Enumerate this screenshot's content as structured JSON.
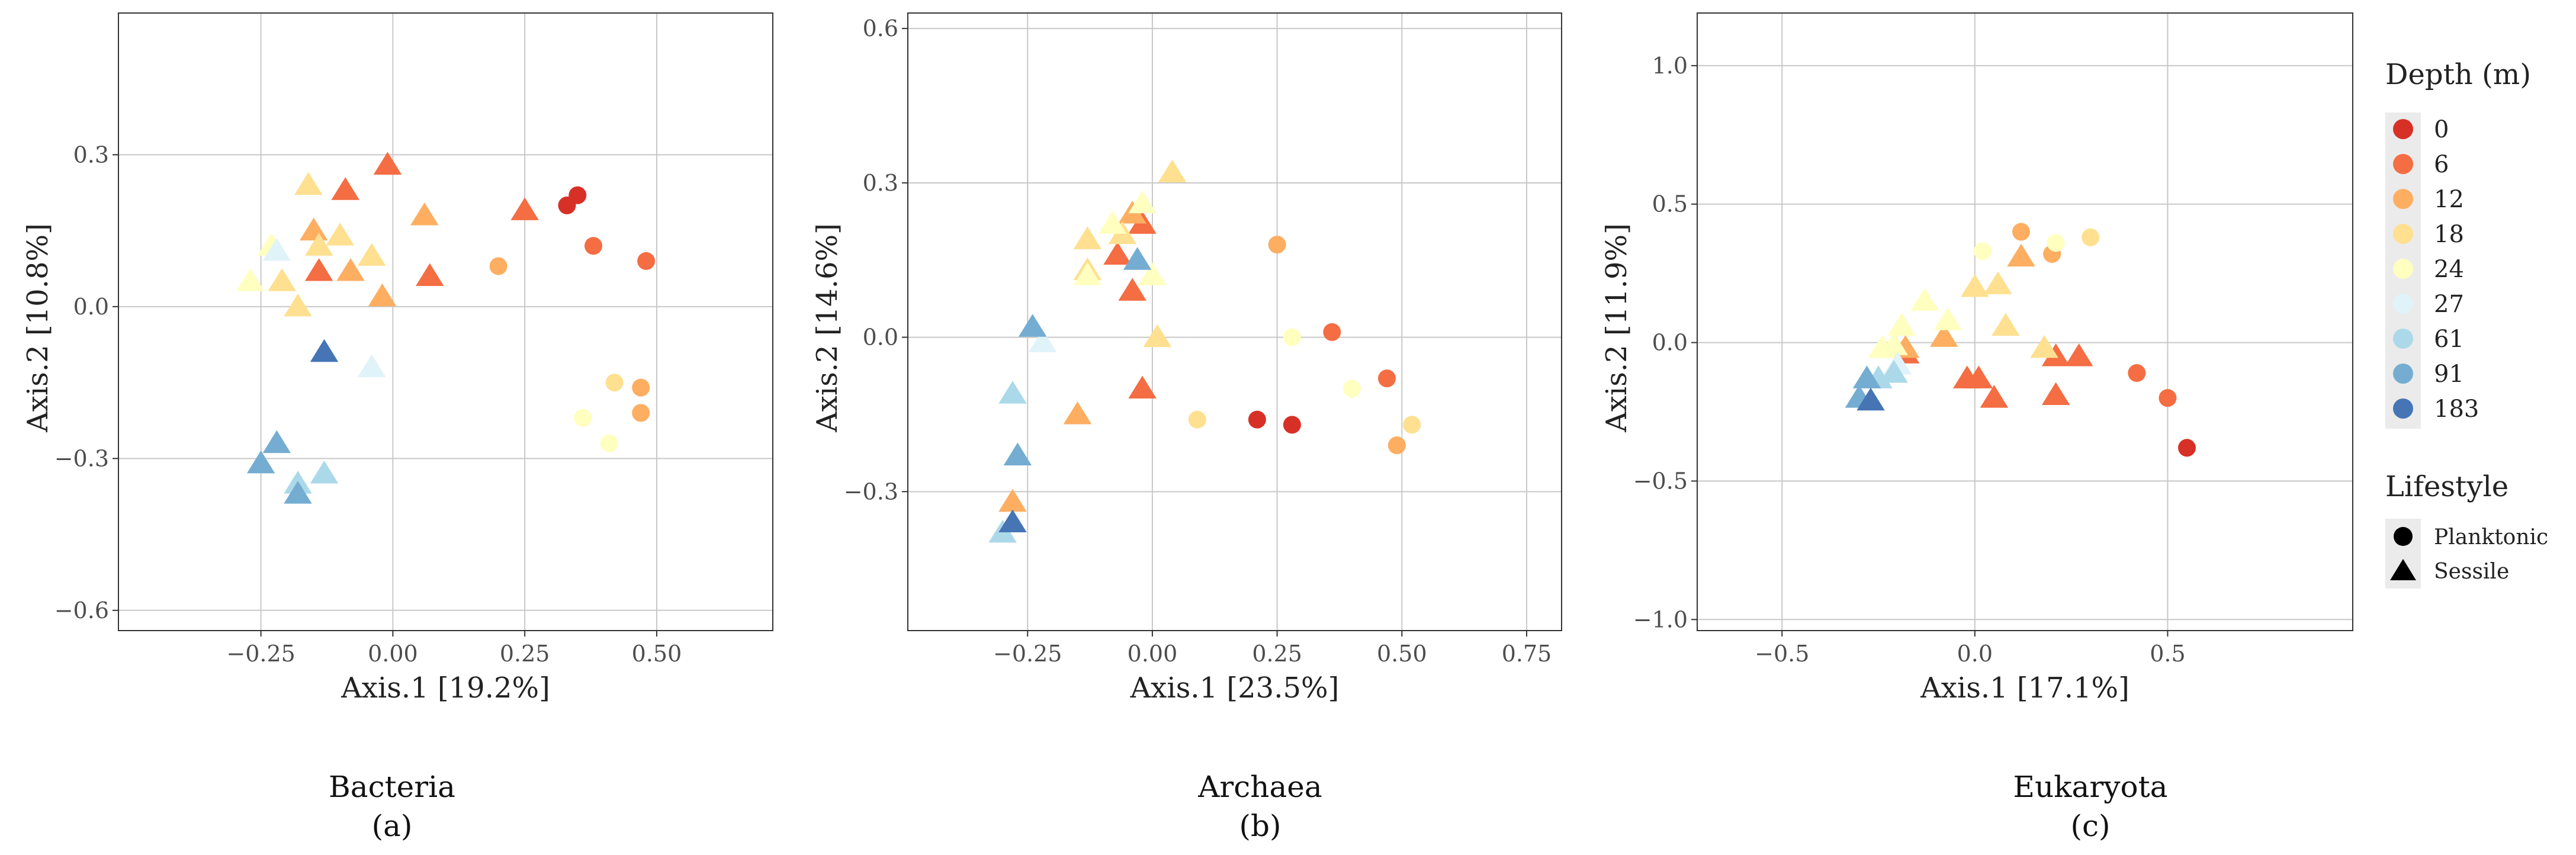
{
  "colors": {
    "0": "#d73027",
    "6": "#f46d43",
    "12": "#fdae61",
    "18": "#fee090",
    "24": "#ffffbf",
    "27": "#e0f3f8",
    "61": "#abd9e9",
    "91": "#74add1",
    "183": "#4575b4",
    "grid": "#c8c8c8",
    "panel_border": "#333333"
  },
  "legend": {
    "depth_title": "Depth (m)",
    "depth_levels": [
      "0",
      "6",
      "12",
      "18",
      "24",
      "27",
      "61",
      "91",
      "183"
    ],
    "lifestyle_title": "Lifestyle",
    "lifestyles": [
      "Planktonic",
      "Sessile"
    ]
  },
  "chart_data": [
    {
      "type": "scatter",
      "title": "Bacteria",
      "caption": "(a)",
      "xlabel": "Axis.1  [19.2%]",
      "ylabel": "Axis.2  [10.8%]",
      "xlim": [
        -0.52,
        0.72
      ],
      "ylim": [
        -0.64,
        0.58
      ],
      "xticks": [
        -0.25,
        0.0,
        0.25,
        0.5
      ],
      "xtick_labels": [
        "−0.25",
        "0.00",
        "0.25",
        "0.50"
      ],
      "yticks": [
        -0.6,
        -0.3,
        0.0,
        0.3
      ],
      "ytick_labels": [
        "−0.6",
        "−0.3",
        "0.0",
        "0.3"
      ],
      "points": [
        {
          "x": 0.33,
          "y": 0.2,
          "depth": "0",
          "lifestyle": "Planktonic"
        },
        {
          "x": 0.35,
          "y": 0.22,
          "depth": "0",
          "lifestyle": "Planktonic"
        },
        {
          "x": 0.38,
          "y": 0.12,
          "depth": "6",
          "lifestyle": "Planktonic"
        },
        {
          "x": 0.48,
          "y": 0.09,
          "depth": "6",
          "lifestyle": "Planktonic"
        },
        {
          "x": 0.2,
          "y": 0.08,
          "depth": "12",
          "lifestyle": "Planktonic"
        },
        {
          "x": 0.47,
          "y": -0.16,
          "depth": "12",
          "lifestyle": "Planktonic"
        },
        {
          "x": 0.47,
          "y": -0.21,
          "depth": "12",
          "lifestyle": "Planktonic"
        },
        {
          "x": 0.42,
          "y": -0.15,
          "depth": "18",
          "lifestyle": "Planktonic"
        },
        {
          "x": 0.36,
          "y": -0.22,
          "depth": "24",
          "lifestyle": "Planktonic"
        },
        {
          "x": 0.41,
          "y": -0.27,
          "depth": "24",
          "lifestyle": "Planktonic"
        },
        {
          "x": -0.01,
          "y": 0.28,
          "depth": "6",
          "lifestyle": "Sessile"
        },
        {
          "x": -0.09,
          "y": 0.23,
          "depth": "6",
          "lifestyle": "Sessile"
        },
        {
          "x": 0.25,
          "y": 0.19,
          "depth": "6",
          "lifestyle": "Sessile"
        },
        {
          "x": -0.14,
          "y": 0.07,
          "depth": "6",
          "lifestyle": "Sessile"
        },
        {
          "x": 0.07,
          "y": 0.06,
          "depth": "6",
          "lifestyle": "Sessile"
        },
        {
          "x": 0.06,
          "y": 0.18,
          "depth": "12",
          "lifestyle": "Sessile"
        },
        {
          "x": -0.15,
          "y": 0.15,
          "depth": "12",
          "lifestyle": "Sessile"
        },
        {
          "x": -0.08,
          "y": 0.07,
          "depth": "12",
          "lifestyle": "Sessile"
        },
        {
          "x": -0.02,
          "y": 0.02,
          "depth": "12",
          "lifestyle": "Sessile"
        },
        {
          "x": -0.16,
          "y": 0.24,
          "depth": "18",
          "lifestyle": "Sessile"
        },
        {
          "x": -0.1,
          "y": 0.14,
          "depth": "18",
          "lifestyle": "Sessile"
        },
        {
          "x": -0.04,
          "y": 0.1,
          "depth": "18",
          "lifestyle": "Sessile"
        },
        {
          "x": -0.14,
          "y": 0.12,
          "depth": "18",
          "lifestyle": "Sessile"
        },
        {
          "x": -0.21,
          "y": 0.05,
          "depth": "18",
          "lifestyle": "Sessile"
        },
        {
          "x": -0.18,
          "y": 0.0,
          "depth": "18",
          "lifestyle": "Sessile"
        },
        {
          "x": -0.23,
          "y": 0.12,
          "depth": "24",
          "lifestyle": "Sessile"
        },
        {
          "x": -0.27,
          "y": 0.05,
          "depth": "24",
          "lifestyle": "Sessile"
        },
        {
          "x": -0.22,
          "y": 0.11,
          "depth": "27",
          "lifestyle": "Sessile"
        },
        {
          "x": -0.04,
          "y": -0.12,
          "depth": "27",
          "lifestyle": "Sessile"
        },
        {
          "x": -0.18,
          "y": -0.35,
          "depth": "61",
          "lifestyle": "Sessile"
        },
        {
          "x": -0.13,
          "y": -0.33,
          "depth": "61",
          "lifestyle": "Sessile"
        },
        {
          "x": -0.22,
          "y": -0.27,
          "depth": "91",
          "lifestyle": "Sessile"
        },
        {
          "x": -0.25,
          "y": -0.31,
          "depth": "91",
          "lifestyle": "Sessile"
        },
        {
          "x": -0.18,
          "y": -0.37,
          "depth": "91",
          "lifestyle": "Sessile"
        },
        {
          "x": -0.13,
          "y": -0.09,
          "depth": "183",
          "lifestyle": "Sessile"
        }
      ]
    },
    {
      "type": "scatter",
      "title": "Archaea",
      "caption": "(b)",
      "xlabel": "Axis.1  [23.5%]",
      "ylabel": "Axis.2  [14.6%]",
      "xlim": [
        -0.49,
        0.82
      ],
      "ylim": [
        -0.57,
        0.63
      ],
      "xticks": [
        -0.25,
        0.0,
        0.25,
        0.5,
        0.75
      ],
      "xtick_labels": [
        "−0.25",
        "0.00",
        "0.25",
        "0.50",
        "0.75"
      ],
      "yticks": [
        -0.3,
        0.0,
        0.3,
        0.6
      ],
      "ytick_labels": [
        "−0.3",
        "0.0",
        "0.3",
        "0.6"
      ],
      "points": [
        {
          "x": 0.21,
          "y": -0.16,
          "depth": "0",
          "lifestyle": "Planktonic"
        },
        {
          "x": 0.28,
          "y": -0.17,
          "depth": "0",
          "lifestyle": "Planktonic"
        },
        {
          "x": 0.36,
          "y": 0.01,
          "depth": "6",
          "lifestyle": "Planktonic"
        },
        {
          "x": 0.47,
          "y": -0.08,
          "depth": "6",
          "lifestyle": "Planktonic"
        },
        {
          "x": 0.25,
          "y": 0.18,
          "depth": "12",
          "lifestyle": "Planktonic"
        },
        {
          "x": 0.49,
          "y": -0.21,
          "depth": "12",
          "lifestyle": "Planktonic"
        },
        {
          "x": 0.09,
          "y": -0.16,
          "depth": "18",
          "lifestyle": "Planktonic"
        },
        {
          "x": 0.52,
          "y": -0.17,
          "depth": "18",
          "lifestyle": "Planktonic"
        },
        {
          "x": 0.28,
          "y": 0.0,
          "depth": "24",
          "lifestyle": "Planktonic"
        },
        {
          "x": 0.4,
          "y": -0.1,
          "depth": "24",
          "lifestyle": "Planktonic"
        },
        {
          "x": -0.02,
          "y": 0.22,
          "depth": "6",
          "lifestyle": "Sessile"
        },
        {
          "x": -0.07,
          "y": 0.16,
          "depth": "6",
          "lifestyle": "Sessile"
        },
        {
          "x": -0.04,
          "y": 0.09,
          "depth": "6",
          "lifestyle": "Sessile"
        },
        {
          "x": -0.02,
          "y": -0.1,
          "depth": "6",
          "lifestyle": "Sessile"
        },
        {
          "x": -0.04,
          "y": 0.24,
          "depth": "12",
          "lifestyle": "Sessile"
        },
        {
          "x": -0.15,
          "y": -0.15,
          "depth": "12",
          "lifestyle": "Sessile"
        },
        {
          "x": -0.28,
          "y": -0.32,
          "depth": "12",
          "lifestyle": "Sessile"
        },
        {
          "x": 0.04,
          "y": 0.32,
          "depth": "18",
          "lifestyle": "Sessile"
        },
        {
          "x": -0.13,
          "y": 0.19,
          "depth": "18",
          "lifestyle": "Sessile"
        },
        {
          "x": -0.06,
          "y": 0.2,
          "depth": "18",
          "lifestyle": "Sessile"
        },
        {
          "x": -0.13,
          "y": 0.13,
          "depth": "18",
          "lifestyle": "Sessile"
        },
        {
          "x": 0.01,
          "y": 0.0,
          "depth": "18",
          "lifestyle": "Sessile"
        },
        {
          "x": -0.02,
          "y": 0.26,
          "depth": "24",
          "lifestyle": "Sessile"
        },
        {
          "x": -0.08,
          "y": 0.22,
          "depth": "24",
          "lifestyle": "Sessile"
        },
        {
          "x": 0.0,
          "y": 0.12,
          "depth": "24",
          "lifestyle": "Sessile"
        },
        {
          "x": -0.13,
          "y": 0.12,
          "depth": "24",
          "lifestyle": "Sessile"
        },
        {
          "x": -0.22,
          "y": -0.01,
          "depth": "27",
          "lifestyle": "Sessile"
        },
        {
          "x": -0.28,
          "y": -0.11,
          "depth": "61",
          "lifestyle": "Sessile"
        },
        {
          "x": -0.3,
          "y": -0.38,
          "depth": "61",
          "lifestyle": "Sessile"
        },
        {
          "x": -0.24,
          "y": 0.02,
          "depth": "91",
          "lifestyle": "Sessile"
        },
        {
          "x": -0.03,
          "y": 0.15,
          "depth": "91",
          "lifestyle": "Sessile"
        },
        {
          "x": -0.27,
          "y": -0.23,
          "depth": "91",
          "lifestyle": "Sessile"
        },
        {
          "x": -0.28,
          "y": -0.36,
          "depth": "183",
          "lifestyle": "Sessile"
        }
      ]
    },
    {
      "type": "scatter",
      "title": "Eukaryota",
      "caption": "(c)",
      "xlabel": "Axis.1  [17.1%]",
      "ylabel": "Axis.2  [11.9%]",
      "xlim": [
        -0.72,
        0.98
      ],
      "ylim": [
        -1.04,
        1.19
      ],
      "xticks": [
        -0.5,
        0.0,
        0.5
      ],
      "xtick_labels": [
        "−0.5",
        "0.0",
        "0.5"
      ],
      "yticks": [
        -1.0,
        -0.5,
        0.0,
        0.5,
        1.0
      ],
      "ytick_labels": [
        "−1.0",
        "−0.5",
        "0.0",
        "0.5",
        "1.0"
      ],
      "points": [
        {
          "x": 0.55,
          "y": -0.38,
          "depth": "0",
          "lifestyle": "Planktonic"
        },
        {
          "x": 0.42,
          "y": -0.11,
          "depth": "6",
          "lifestyle": "Planktonic"
        },
        {
          "x": 0.5,
          "y": -0.2,
          "depth": "6",
          "lifestyle": "Planktonic"
        },
        {
          "x": 0.12,
          "y": 0.4,
          "depth": "12",
          "lifestyle": "Planktonic"
        },
        {
          "x": 0.2,
          "y": 0.32,
          "depth": "12",
          "lifestyle": "Planktonic"
        },
        {
          "x": 0.3,
          "y": 0.38,
          "depth": "18",
          "lifestyle": "Planktonic"
        },
        {
          "x": 0.02,
          "y": 0.33,
          "depth": "24",
          "lifestyle": "Planktonic"
        },
        {
          "x": 0.21,
          "y": 0.36,
          "depth": "24",
          "lifestyle": "Planktonic"
        },
        {
          "x": -0.02,
          "y": -0.13,
          "depth": "6",
          "lifestyle": "Sessile"
        },
        {
          "x": 0.01,
          "y": -0.13,
          "depth": "6",
          "lifestyle": "Sessile"
        },
        {
          "x": 0.05,
          "y": -0.2,
          "depth": "6",
          "lifestyle": "Sessile"
        },
        {
          "x": 0.21,
          "y": -0.05,
          "depth": "6",
          "lifestyle": "Sessile"
        },
        {
          "x": 0.27,
          "y": -0.05,
          "depth": "6",
          "lifestyle": "Sessile"
        },
        {
          "x": 0.21,
          "y": -0.19,
          "depth": "6",
          "lifestyle": "Sessile"
        },
        {
          "x": -0.18,
          "y": -0.04,
          "depth": "6",
          "lifestyle": "Sessile"
        },
        {
          "x": -0.08,
          "y": 0.02,
          "depth": "12",
          "lifestyle": "Sessile"
        },
        {
          "x": 0.12,
          "y": 0.31,
          "depth": "12",
          "lifestyle": "Sessile"
        },
        {
          "x": -0.18,
          "y": -0.02,
          "depth": "12",
          "lifestyle": "Sessile"
        },
        {
          "x": 0.0,
          "y": 0.2,
          "depth": "18",
          "lifestyle": "Sessile"
        },
        {
          "x": 0.06,
          "y": 0.21,
          "depth": "18",
          "lifestyle": "Sessile"
        },
        {
          "x": 0.08,
          "y": 0.06,
          "depth": "18",
          "lifestyle": "Sessile"
        },
        {
          "x": 0.18,
          "y": -0.02,
          "depth": "18",
          "lifestyle": "Sessile"
        },
        {
          "x": -0.07,
          "y": 0.08,
          "depth": "24",
          "lifestyle": "Sessile"
        },
        {
          "x": -0.13,
          "y": 0.15,
          "depth": "24",
          "lifestyle": "Sessile"
        },
        {
          "x": -0.21,
          "y": -0.01,
          "depth": "24",
          "lifestyle": "Sessile"
        },
        {
          "x": -0.24,
          "y": -0.02,
          "depth": "24",
          "lifestyle": "Sessile"
        },
        {
          "x": -0.19,
          "y": 0.06,
          "depth": "24",
          "lifestyle": "Sessile"
        },
        {
          "x": -0.2,
          "y": -0.08,
          "depth": "27",
          "lifestyle": "Sessile"
        },
        {
          "x": -0.21,
          "y": -0.11,
          "depth": "61",
          "lifestyle": "Sessile"
        },
        {
          "x": -0.25,
          "y": -0.13,
          "depth": "61",
          "lifestyle": "Sessile"
        },
        {
          "x": -0.3,
          "y": -0.2,
          "depth": "91",
          "lifestyle": "Sessile"
        },
        {
          "x": -0.28,
          "y": -0.13,
          "depth": "91",
          "lifestyle": "Sessile"
        },
        {
          "x": -0.27,
          "y": -0.21,
          "depth": "183",
          "lifestyle": "Sessile"
        }
      ]
    }
  ]
}
